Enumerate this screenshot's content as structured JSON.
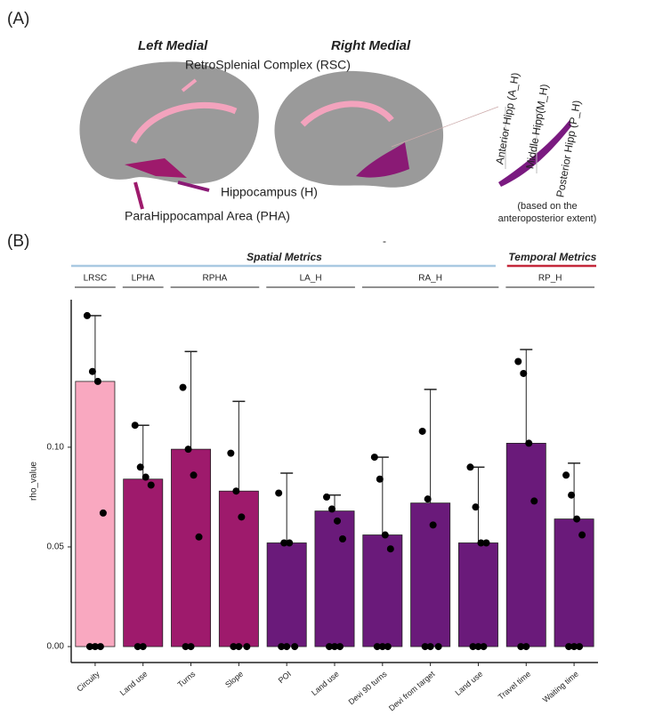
{
  "panel_a": {
    "label": "(A)",
    "left_title": "Left Medial",
    "right_title": "Right Medial",
    "rsc": "RetroSplenial Complex (RSC)",
    "hippocampus": "Hippocampus (H)",
    "pha": "ParaHippocampal Area (PHA)",
    "anterior": "Anterior Hipp (A_H)",
    "middle": "Middle Hipp(M_H)",
    "posterior": "Posterior Hipp (P_H)",
    "note": [
      "(based on the",
      "anteroposterior extent)"
    ]
  },
  "panel_b": {
    "label": "(B)",
    "dash": "-"
  },
  "chart_data": {
    "type": "bar",
    "ylabel": "rho_value",
    "metric_groups": [
      "Spatial Metrics",
      "Temporal Metrics"
    ],
    "metric_colors": [
      "#a9c9e2",
      "#c4283a"
    ],
    "group_labels": [
      "LRSC",
      "LPHA",
      "RPHA",
      "LA_H",
      "RA_H",
      "RP_H"
    ],
    "categories": [
      "Circuity",
      "Land use",
      "Turns",
      "Slope",
      "POI",
      "Land use",
      "Devi 90 turns",
      "Devi from target",
      "Land use",
      "Travel time",
      "Waiting time"
    ],
    "values": [
      0.133,
      0.084,
      0.099,
      0.078,
      0.052,
      0.068,
      0.056,
      0.072,
      0.052,
      0.102,
      0.064
    ],
    "upper": [
      0.166,
      0.111,
      0.148,
      0.123,
      0.087,
      0.076,
      0.095,
      0.129,
      0.09,
      0.149,
      0.092
    ],
    "colors": [
      "#f9a8c0",
      "#9e1a6c",
      "#9e1a6c",
      "#9e1a6c",
      "#6a1a7a",
      "#6a1a7a",
      "#6a1a7a",
      "#6a1a7a",
      "#6a1a7a",
      "#6a1a7a",
      "#6a1a7a"
    ],
    "points": [
      [
        0.166,
        0.138,
        0.133,
        0.067,
        0,
        0,
        0
      ],
      [
        0.111,
        0.09,
        0.085,
        0.081,
        0,
        0
      ],
      [
        0.13,
        0.099,
        0.086,
        0.055,
        0,
        0
      ],
      [
        0.097,
        0.078,
        0.065,
        0,
        0,
        0
      ],
      [
        0.077,
        0.052,
        0.052,
        0,
        0,
        0
      ],
      [
        0.075,
        0.069,
        0.063,
        0.054,
        0,
        0,
        0
      ],
      [
        0.095,
        0.084,
        0.056,
        0.049,
        0,
        0,
        0
      ],
      [
        0.108,
        0.074,
        0.061,
        0,
        0,
        0
      ],
      [
        0.09,
        0.07,
        0.052,
        0.052,
        0,
        0,
        0
      ],
      [
        0.143,
        0.137,
        0.102,
        0.073,
        0,
        0
      ],
      [
        0.086,
        0.076,
        0.064,
        0.056,
        0,
        0,
        0
      ]
    ],
    "ylim": [
      -0.008,
      0.174
    ],
    "yticks": [
      {
        "value": 0,
        "label": "0.00"
      },
      {
        "value": 0.05,
        "label": "0.05"
      },
      {
        "value": 0.1,
        "label": "0.10"
      }
    ]
  }
}
